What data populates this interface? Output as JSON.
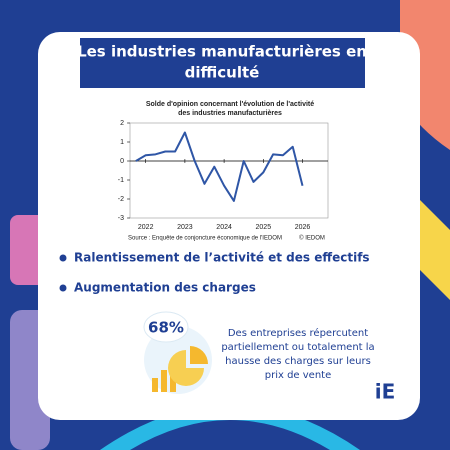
{
  "header": {
    "title": [
      "Les industries manufacturières en",
      "difficulté"
    ]
  },
  "chart_data": {
    "type": "line",
    "title": [
      "Solde d'opinion  concernant l'évolution  de l'activité",
      "des industries  manufacturières"
    ],
    "x": [
      2021.75,
      2022,
      2022.25,
      2022.5,
      2022.75,
      2023,
      2023.25,
      2023.5,
      2023.75,
      2024,
      2024.25,
      2024.5,
      2024.75,
      2025,
      2025.25,
      2025.5,
      2025.75,
      2026
    ],
    "values": [
      0,
      0.3,
      0.35,
      0.5,
      0.5,
      1.5,
      0,
      -1.2,
      -0.3,
      -1.3,
      -2.1,
      0,
      -1.1,
      -0.6,
      0.35,
      0.3,
      0.75,
      -1.3
    ],
    "color": "#2f56a6",
    "xlim": [
      2021.6,
      2026.65
    ],
    "xticks": [
      2022,
      2023,
      2024,
      2025,
      2026
    ],
    "ylim": [
      -3,
      2
    ],
    "yticks": [
      -3,
      -2,
      -1,
      0,
      1,
      2
    ],
    "source": "Source : Enquête de conjoncture économique de l'IEDOM",
    "credit": "© IEDOM"
  },
  "bullets": [
    "Ralentissement de l’activité et des effectifs",
    "Augmentation des charges"
  ],
  "stat": {
    "value": "68%",
    "description": [
      "Des entreprises répercutent",
      "partiellement ou totalement la",
      "hausse des charges sur leurs",
      "prix de vente"
    ]
  },
  "logo": "iE"
}
